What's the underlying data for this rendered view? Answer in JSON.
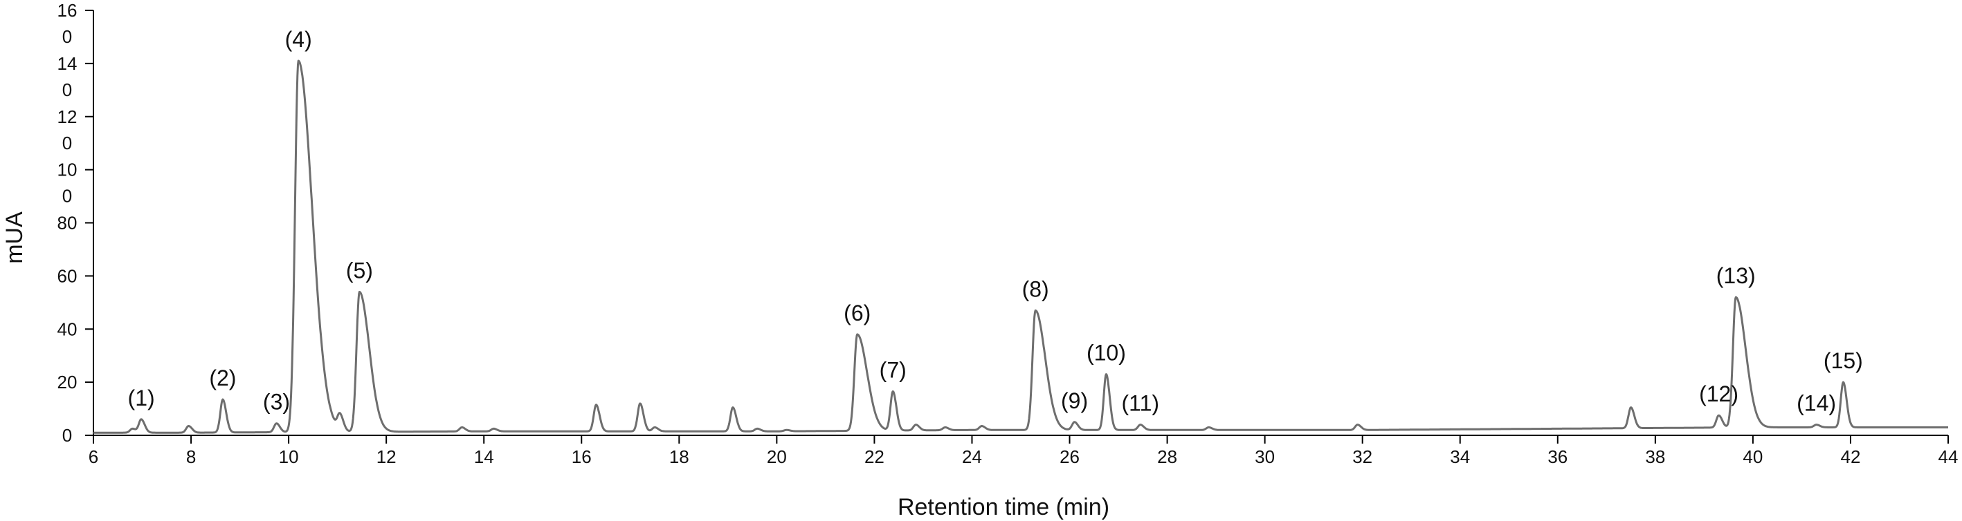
{
  "chart_data": {
    "type": "line",
    "xlabel": "Retention time (min)",
    "ylabel": "mUA",
    "xlim": [
      6,
      44
    ],
    "ylim": [
      0,
      160
    ],
    "grid": false,
    "legend": "none",
    "line_color": "#6e6e6e",
    "x_ticks": [
      "6",
      "8",
      "10",
      "12",
      "14",
      "16",
      "18",
      "20",
      "22",
      "24",
      "26",
      "28",
      "30",
      "32",
      "34",
      "36",
      "38",
      "40",
      "42",
      "44"
    ],
    "y_ticks": [
      {
        "value": 0,
        "lines": [
          "0"
        ]
      },
      {
        "value": 20,
        "lines": [
          "20"
        ]
      },
      {
        "value": 40,
        "lines": [
          "40"
        ]
      },
      {
        "value": 60,
        "lines": [
          "60"
        ]
      },
      {
        "value": 80,
        "lines": [
          "80"
        ]
      },
      {
        "value": 100,
        "lines": [
          "10",
          "0"
        ]
      },
      {
        "value": 120,
        "lines": [
          "12",
          "0"
        ]
      },
      {
        "value": 140,
        "lines": [
          "14",
          "0"
        ]
      },
      {
        "value": 160,
        "lines": [
          "16",
          "0"
        ]
      }
    ],
    "baseline": [
      [
        6.0,
        1.0
      ],
      [
        8.0,
        1.0
      ],
      [
        10.0,
        1.2
      ],
      [
        14.0,
        1.5
      ],
      [
        20.0,
        1.5
      ],
      [
        24.0,
        2.0
      ],
      [
        28.0,
        2.0
      ],
      [
        32.0,
        2.0
      ],
      [
        36.0,
        2.5
      ],
      [
        40.0,
        3.0
      ],
      [
        44.0,
        3.0
      ]
    ],
    "peaks": [
      {
        "label": "(1)",
        "x": 6.98,
        "y": 6.0
      },
      {
        "label": "(2)",
        "x": 8.65,
        "y": 13.5
      },
      {
        "label": "(3)",
        "x": 9.75,
        "y": 4.5
      },
      {
        "label": "(4)",
        "x": 10.2,
        "y": 141.0
      },
      {
        "label": "(5)",
        "x": 11.45,
        "y": 54.0
      },
      {
        "label": "(6)",
        "x": 21.65,
        "y": 38.0
      },
      {
        "label": "(7)",
        "x": 22.38,
        "y": 16.5
      },
      {
        "label": "(8)",
        "x": 25.3,
        "y": 47.0
      },
      {
        "label": "(9)",
        "x": 26.1,
        "y": 5.0
      },
      {
        "label": "(10)",
        "x": 26.75,
        "y": 23.0
      },
      {
        "label": "(11)",
        "x": 27.45,
        "y": 4.0
      },
      {
        "label": "(12)",
        "x": 39.3,
        "y": 7.5
      },
      {
        "label": "(13)",
        "x": 39.65,
        "y": 52.0
      },
      {
        "label": "(14)",
        "x": 41.3,
        "y": 4.0
      },
      {
        "label": "(15)",
        "x": 41.85,
        "y": 20.0
      }
    ],
    "minor_peaks": [
      {
        "x": 6.8,
        "y": 2.5
      },
      {
        "x": 7.95,
        "y": 3.5
      },
      {
        "x": 11.05,
        "y": 7.0
      },
      {
        "x": 13.55,
        "y": 3.0
      },
      {
        "x": 14.2,
        "y": 2.5
      },
      {
        "x": 16.3,
        "y": 11.5
      },
      {
        "x": 17.2,
        "y": 12.0
      },
      {
        "x": 17.5,
        "y": 3.0
      },
      {
        "x": 19.1,
        "y": 10.5
      },
      {
        "x": 19.6,
        "y": 2.5
      },
      {
        "x": 20.2,
        "y": 2.0
      },
      {
        "x": 22.85,
        "y": 4.0
      },
      {
        "x": 23.45,
        "y": 3.0
      },
      {
        "x": 24.2,
        "y": 3.5
      },
      {
        "x": 28.85,
        "y": 3.0
      },
      {
        "x": 31.9,
        "y": 4.0
      },
      {
        "x": 37.5,
        "y": 10.5
      }
    ]
  }
}
